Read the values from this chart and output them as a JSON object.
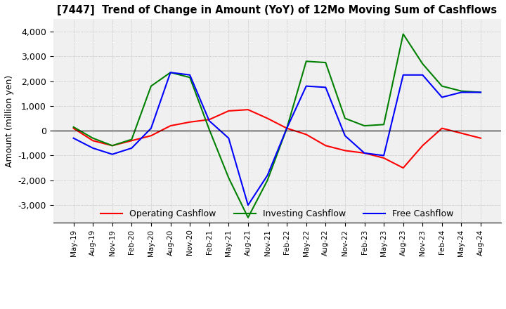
{
  "title": "[7447]  Trend of Change in Amount (YoY) of 12Mo Moving Sum of Cashflows",
  "ylabel": "Amount (million yen)",
  "ylim": [
    -3700,
    4500
  ],
  "yticks": [
    -3000,
    -2000,
    -1000,
    0,
    1000,
    2000,
    3000,
    4000
  ],
  "x_labels": [
    "May-19",
    "Aug-19",
    "Nov-19",
    "Feb-20",
    "May-20",
    "Aug-20",
    "Nov-20",
    "Feb-21",
    "May-21",
    "Aug-21",
    "Nov-21",
    "Feb-22",
    "May-22",
    "Aug-22",
    "Nov-22",
    "Feb-23",
    "May-23",
    "Aug-23",
    "Nov-23",
    "Feb-24",
    "May-24",
    "Aug-24"
  ],
  "operating": [
    100,
    -400,
    -600,
    -400,
    -200,
    200,
    350,
    450,
    800,
    850,
    500,
    100,
    -150,
    -600,
    -800,
    -900,
    -1100,
    -1500,
    -600,
    100,
    -100,
    -300
  ],
  "investing": [
    150,
    -300,
    -600,
    -350,
    1800,
    2350,
    2150,
    50,
    -1900,
    -3500,
    -2000,
    100,
    2800,
    2750,
    500,
    200,
    250,
    3900,
    2700,
    1800,
    1600,
    1550
  ],
  "free": [
    -300,
    -700,
    -950,
    -700,
    100,
    2350,
    2250,
    400,
    -300,
    -3000,
    -1800,
    100,
    1800,
    1750,
    -200,
    -900,
    -1000,
    2250,
    2250,
    1350,
    1550,
    1550
  ],
  "operating_color": "#ff0000",
  "investing_color": "#008000",
  "free_color": "#0000ff",
  "background_color": "#f0f0f0",
  "grid_color": "#aaaaaa"
}
